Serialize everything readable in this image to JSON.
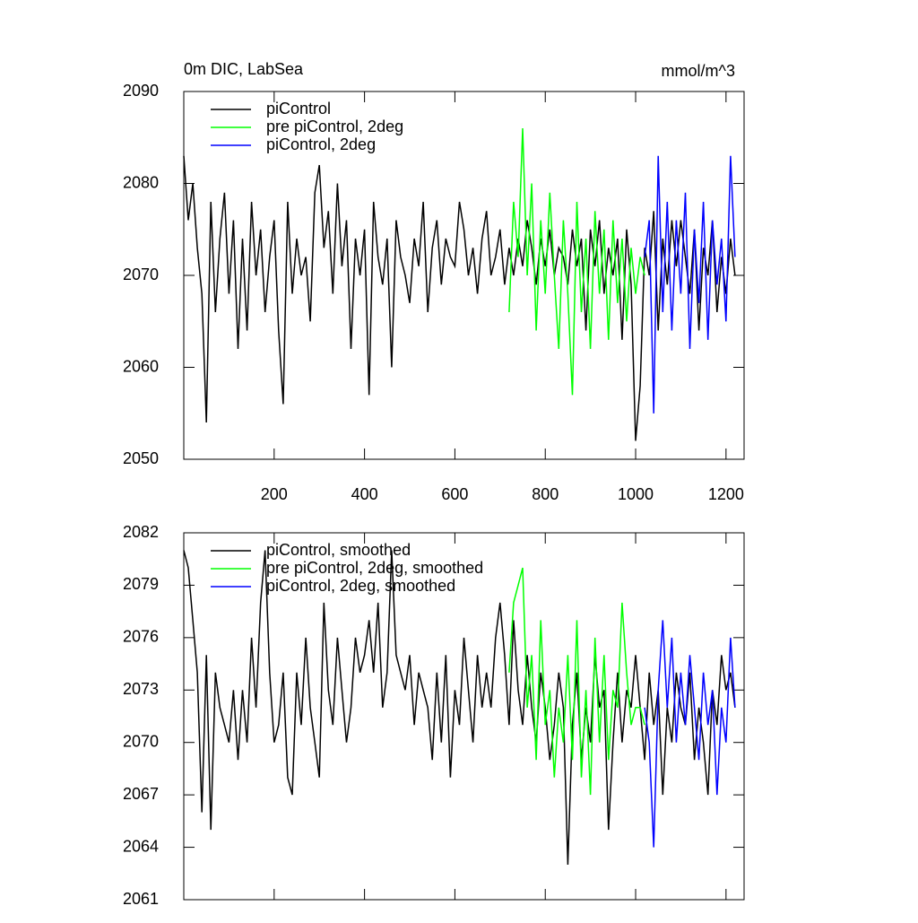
{
  "chart_data": [
    {
      "type": "line",
      "title": "0m DIC, LabSea",
      "units": "mmol/m^3",
      "xlim": [
        0,
        1240
      ],
      "xticks": [
        200,
        400,
        600,
        800,
        1000,
        1200
      ],
      "show_xtick_labels": true,
      "ylim": [
        2050,
        2090
      ],
      "yticks": [
        2050,
        2060,
        2070,
        2080,
        2090
      ],
      "series": [
        {
          "name": "piControl",
          "color": "#000000",
          "x": [
            0,
            10,
            20,
            30,
            40,
            50,
            60,
            70,
            80,
            90,
            100,
            110,
            120,
            130,
            140,
            150,
            160,
            170,
            180,
            190,
            200,
            210,
            220,
            230,
            240,
            250,
            260,
            270,
            280,
            290,
            300,
            310,
            320,
            330,
            340,
            350,
            360,
            370,
            380,
            390,
            400,
            410,
            420,
            430,
            440,
            450,
            460,
            470,
            480,
            490,
            500,
            510,
            520,
            530,
            540,
            550,
            560,
            570,
            580,
            590,
            600,
            610,
            620,
            630,
            640,
            650,
            660,
            670,
            680,
            690,
            700,
            710,
            720,
            730,
            740,
            750,
            760,
            770,
            780,
            790,
            800,
            810,
            820,
            830,
            840,
            850,
            860,
            870,
            880,
            890,
            900,
            910,
            920,
            930,
            940,
            950,
            960,
            970,
            980,
            990,
            1000,
            1010,
            1020,
            1030,
            1040,
            1050,
            1060,
            1070,
            1080,
            1090,
            1100,
            1110,
            1120,
            1130,
            1140,
            1150,
            1160,
            1170,
            1180,
            1190,
            1200,
            1210,
            1220
          ],
          "values": [
            2083,
            2076,
            2080,
            2073,
            2068,
            2054,
            2078,
            2066,
            2074,
            2079,
            2068,
            2076,
            2062,
            2074,
            2064,
            2078,
            2070,
            2075,
            2066,
            2072,
            2076,
            2064,
            2056,
            2078,
            2068,
            2074,
            2070,
            2072,
            2065,
            2079,
            2082,
            2073,
            2077,
            2068,
            2080,
            2071,
            2076,
            2062,
            2074,
            2070,
            2075,
            2057,
            2078,
            2072,
            2069,
            2074,
            2060,
            2076,
            2072,
            2070,
            2067,
            2074,
            2071,
            2078,
            2066,
            2073,
            2076,
            2069,
            2074,
            2072,
            2071,
            2078,
            2075,
            2070,
            2073,
            2068,
            2074,
            2077,
            2070,
            2072,
            2075,
            2069,
            2073,
            2070,
            2074,
            2071,
            2076,
            2073,
            2069,
            2074,
            2071,
            2075,
            2070,
            2073,
            2072,
            2069,
            2075,
            2071,
            2074,
            2064,
            2075,
            2071,
            2076,
            2068,
            2073,
            2070,
            2074,
            2063,
            2075,
            2069,
            2052,
            2058,
            2073,
            2070,
            2077,
            2064,
            2074,
            2069,
            2076,
            2071,
            2076,
            2072,
            2068,
            2075,
            2064,
            2073,
            2070,
            2076,
            2066,
            2072,
            2068,
            2074,
            2070
          ]
        },
        {
          "name": "pre piControl, 2deg",
          "color": "#00ff00",
          "x": [
            720,
            730,
            740,
            750,
            760,
            770,
            780,
            790,
            800,
            810,
            820,
            830,
            840,
            850,
            860,
            870,
            880,
            890,
            900,
            910,
            920,
            930,
            940,
            950,
            960,
            970,
            980,
            990,
            1000,
            1010,
            1020
          ],
          "values": [
            2066,
            2078,
            2072,
            2086,
            2070,
            2080,
            2064,
            2076,
            2068,
            2079,
            2070,
            2062,
            2076,
            2068,
            2057,
            2078,
            2066,
            2074,
            2062,
            2077,
            2068,
            2075,
            2063,
            2076,
            2067,
            2074,
            2065,
            2073,
            2068,
            2072,
            2070
          ]
        },
        {
          "name": "piControl, 2deg",
          "color": "#0000ff",
          "x": [
            1020,
            1030,
            1040,
            1050,
            1060,
            1070,
            1080,
            1090,
            1100,
            1110,
            1120,
            1130,
            1140,
            1150,
            1160,
            1170,
            1180,
            1190,
            1200,
            1210,
            1220
          ],
          "values": [
            2072,
            2076,
            2055,
            2083,
            2066,
            2078,
            2064,
            2076,
            2068,
            2079,
            2062,
            2075,
            2067,
            2078,
            2063,
            2076,
            2069,
            2074,
            2065,
            2083,
            2072
          ]
        }
      ]
    },
    {
      "type": "line",
      "xlim": [
        0,
        1240
      ],
      "xticks": [
        200,
        400,
        600,
        800,
        1000,
        1200
      ],
      "show_xtick_labels": false,
      "ylim": [
        2061,
        2082
      ],
      "yticks": [
        2061,
        2064,
        2067,
        2070,
        2073,
        2076,
        2079,
        2082
      ],
      "series": [
        {
          "name": "piControl, smoothed",
          "color": "#000000",
          "x": [
            0,
            10,
            20,
            30,
            40,
            50,
            60,
            70,
            80,
            90,
            100,
            110,
            120,
            130,
            140,
            150,
            160,
            170,
            180,
            190,
            200,
            210,
            220,
            230,
            240,
            250,
            260,
            270,
            280,
            290,
            300,
            310,
            320,
            330,
            340,
            350,
            360,
            370,
            380,
            390,
            400,
            410,
            420,
            430,
            440,
            450,
            460,
            470,
            480,
            490,
            500,
            510,
            520,
            530,
            540,
            550,
            560,
            570,
            580,
            590,
            600,
            610,
            620,
            630,
            640,
            650,
            660,
            670,
            680,
            690,
            700,
            710,
            720,
            730,
            740,
            750,
            760,
            770,
            780,
            790,
            800,
            810,
            820,
            830,
            840,
            850,
            860,
            870,
            880,
            890,
            900,
            910,
            920,
            930,
            940,
            950,
            960,
            970,
            980,
            990,
            1000,
            1010,
            1020,
            1030,
            1040,
            1050,
            1060,
            1070,
            1080,
            1090,
            1100,
            1110,
            1120,
            1130,
            1140,
            1150,
            1160,
            1170,
            1180,
            1190,
            1200,
            1210,
            1220
          ],
          "values": [
            2081,
            2080,
            2077,
            2074,
            2066,
            2075,
            2065,
            2074,
            2072,
            2071,
            2070,
            2073,
            2069,
            2073,
            2070,
            2076,
            2072,
            2078,
            2081,
            2074,
            2070,
            2071,
            2074,
            2068,
            2067,
            2074,
            2071,
            2076,
            2072,
            2070,
            2068,
            2078,
            2073,
            2071,
            2076,
            2073,
            2070,
            2072,
            2076,
            2074,
            2075,
            2077,
            2074,
            2078,
            2072,
            2074,
            2081,
            2075,
            2074,
            2073,
            2075,
            2071,
            2074,
            2073,
            2072,
            2069,
            2074,
            2070,
            2075,
            2068,
            2073,
            2071,
            2076,
            2073,
            2070,
            2075,
            2072,
            2074,
            2072,
            2076,
            2078,
            2075,
            2071,
            2077,
            2073,
            2071,
            2075,
            2072,
            2070,
            2074,
            2072,
            2069,
            2071,
            2074,
            2072,
            2063,
            2071,
            2074,
            2069,
            2072,
            2070,
            2075,
            2072,
            2073,
            2065,
            2070,
            2074,
            2070,
            2073,
            2072,
            2075,
            2072,
            2069,
            2074,
            2071,
            2073,
            2067,
            2072,
            2070,
            2074,
            2072,
            2071,
            2074,
            2069,
            2072,
            2070,
            2067,
            2073,
            2071,
            2075,
            2073,
            2074,
            2072
          ]
        },
        {
          "name": "pre piControl, 2deg, smoothed",
          "color": "#00ff00",
          "x": [
            720,
            730,
            740,
            750,
            760,
            770,
            780,
            790,
            800,
            810,
            820,
            830,
            840,
            850,
            860,
            870,
            880,
            890,
            900,
            910,
            920,
            930,
            940,
            950,
            960,
            970,
            980,
            990,
            1000,
            1010,
            1020
          ],
          "values": [
            2074,
            2078,
            2079,
            2080,
            2072,
            2075,
            2069,
            2077,
            2071,
            2073,
            2068,
            2072,
            2070,
            2075,
            2069,
            2077,
            2068,
            2073,
            2067,
            2076,
            2070,
            2075,
            2069,
            2073,
            2072,
            2078,
            2074,
            2071,
            2072,
            2072,
            2071
          ]
        },
        {
          "name": "piControl, 2deg, smoothed",
          "color": "#0000ff",
          "x": [
            1020,
            1030,
            1040,
            1050,
            1060,
            1070,
            1080,
            1090,
            1100,
            1110,
            1120,
            1130,
            1140,
            1150,
            1160,
            1170,
            1180,
            1190,
            1200,
            1210,
            1220
          ],
          "values": [
            2072,
            2070,
            2064,
            2073,
            2077,
            2072,
            2076,
            2070,
            2074,
            2071,
            2075,
            2072,
            2069,
            2074,
            2071,
            2073,
            2067,
            2072,
            2070,
            2076,
            2072
          ]
        }
      ]
    }
  ]
}
